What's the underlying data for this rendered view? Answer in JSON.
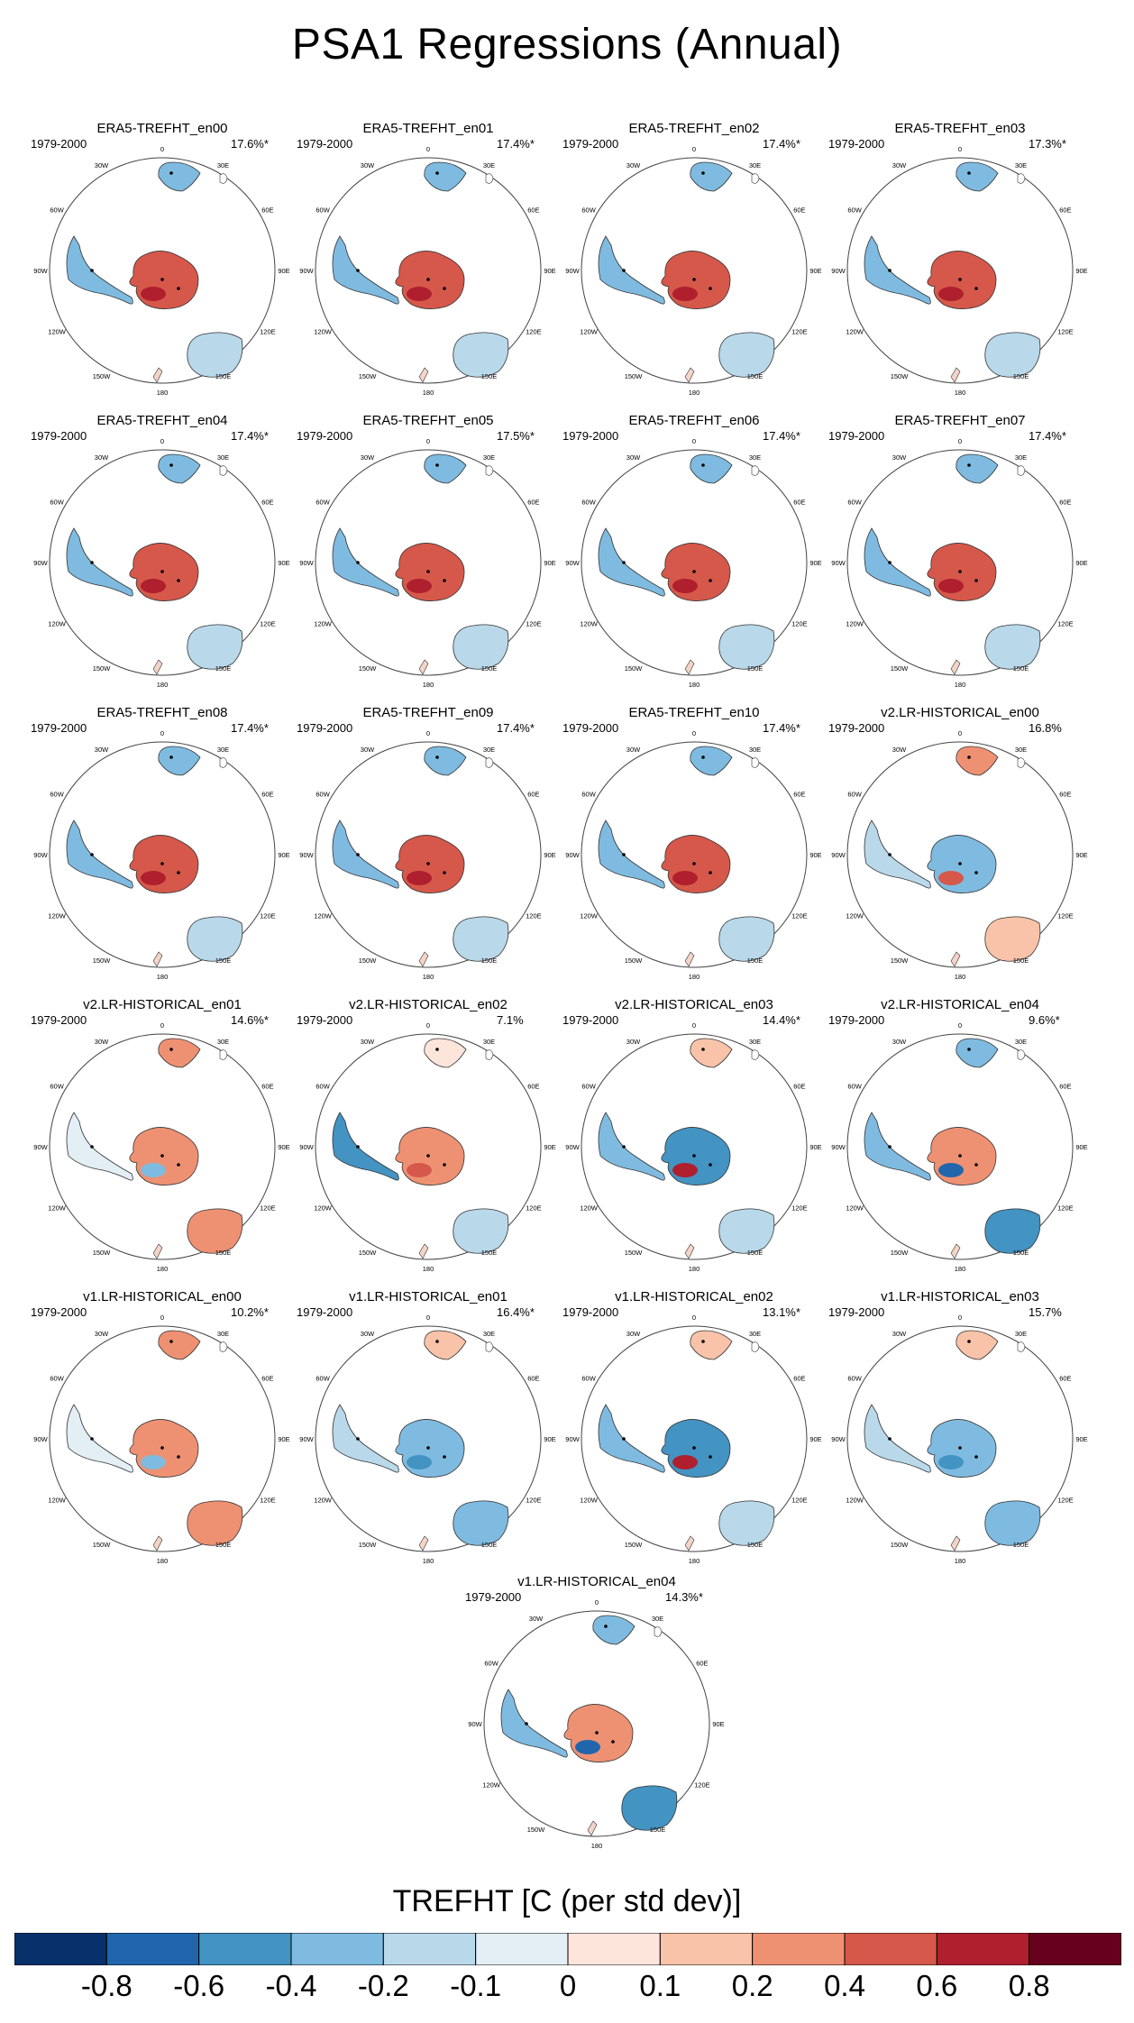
{
  "title": "PSA1 Regressions (Annual)",
  "period_label": "1979-2000",
  "longitude_labels": [
    "0",
    "30E",
    "60E",
    "90E",
    "120E",
    "150E",
    "180",
    "150W",
    "120W",
    "90W",
    "60W",
    "30W"
  ],
  "panels": [
    {
      "name": "ERA5-TREFHT_en00",
      "pct": "17.6%*",
      "pattern": "era5"
    },
    {
      "name": "ERA5-TREFHT_en01",
      "pct": "17.4%*",
      "pattern": "era5"
    },
    {
      "name": "ERA5-TREFHT_en02",
      "pct": "17.4%*",
      "pattern": "era5"
    },
    {
      "name": "ERA5-TREFHT_en03",
      "pct": "17.3%*",
      "pattern": "era5"
    },
    {
      "name": "ERA5-TREFHT_en04",
      "pct": "17.4%*",
      "pattern": "era5"
    },
    {
      "name": "ERA5-TREFHT_en05",
      "pct": "17.5%*",
      "pattern": "era5"
    },
    {
      "name": "ERA5-TREFHT_en06",
      "pct": "17.4%*",
      "pattern": "era5"
    },
    {
      "name": "ERA5-TREFHT_en07",
      "pct": "17.4%*",
      "pattern": "era5"
    },
    {
      "name": "ERA5-TREFHT_en08",
      "pct": "17.4%*",
      "pattern": "era5"
    },
    {
      "name": "ERA5-TREFHT_en09",
      "pct": "17.4%*",
      "pattern": "era5"
    },
    {
      "name": "ERA5-TREFHT_en10",
      "pct": "17.4%*",
      "pattern": "era5"
    },
    {
      "name": "v2.LR-HISTORICAL_en00",
      "pct": "16.8%",
      "pattern": "mixed_a"
    },
    {
      "name": "v2.LR-HISTORICAL_en01",
      "pct": "14.6%*",
      "pattern": "mixed_b"
    },
    {
      "name": "v2.LR-HISTORICAL_en02",
      "pct": "7.1%",
      "pattern": "mixed_c"
    },
    {
      "name": "v2.LR-HISTORICAL_en03",
      "pct": "14.4%*",
      "pattern": "mixed_d"
    },
    {
      "name": "v2.LR-HISTORICAL_en04",
      "pct": "9.6%*",
      "pattern": "mixed_e"
    },
    {
      "name": "v1.LR-HISTORICAL_en00",
      "pct": "10.2%*",
      "pattern": "mixed_b"
    },
    {
      "name": "v1.LR-HISTORICAL_en01",
      "pct": "16.4%*",
      "pattern": "mixed_f"
    },
    {
      "name": "v1.LR-HISTORICAL_en02",
      "pct": "13.1%*",
      "pattern": "mixed_d"
    },
    {
      "name": "v1.LR-HISTORICAL_en03",
      "pct": "15.7%",
      "pattern": "mixed_f"
    },
    {
      "name": "v1.LR-HISTORICAL_en04",
      "pct": "14.3%*",
      "pattern": "mixed_e"
    }
  ],
  "colorbar": {
    "title": "TREFHT [C (per std dev)]",
    "tick_labels": [
      "-0.8",
      "-0.6",
      "-0.4",
      "-0.2",
      "-0.1",
      "0",
      "0.1",
      "0.2",
      "0.4",
      "0.6",
      "0.8"
    ],
    "colors": [
      "#08306b",
      "#2166ac",
      "#4393c3",
      "#7fbbe0",
      "#b9d9ea",
      "#e3eef5",
      "#fde5dc",
      "#f8c3a8",
      "#ee9173",
      "#d6584a",
      "#b01f2e",
      "#67001f"
    ]
  }
}
